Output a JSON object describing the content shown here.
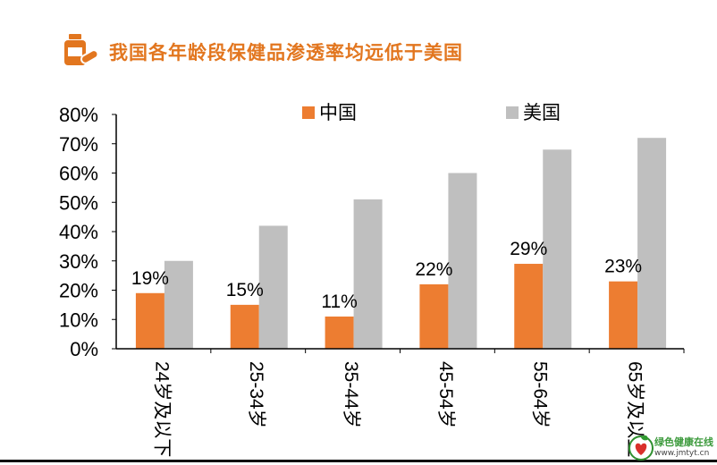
{
  "header": {
    "title": "我国各年龄段保健品渗透率均远低于美国",
    "icon": "medicine-bottle-icon",
    "accent": "#e2761f"
  },
  "chart_data": {
    "type": "bar",
    "categories": [
      "24岁及以下",
      "25-34岁",
      "35-44岁",
      "45-54岁",
      "55-64岁",
      "65岁及以上"
    ],
    "series": [
      {
        "name": "中国",
        "values": [
          19,
          15,
          11,
          22,
          29,
          23
        ],
        "color": "#ed7d31"
      },
      {
        "name": "美国",
        "values": [
          30,
          42,
          51,
          60,
          68,
          72
        ],
        "color": "#bfbfbf"
      }
    ],
    "data_labels": [
      "19%",
      "15%",
      "11%",
      "22%",
      "29%",
      "23%"
    ],
    "yticks": [
      "0%",
      "10%",
      "20%",
      "30%",
      "40%",
      "50%",
      "60%",
      "70%",
      "80%"
    ],
    "ylim": [
      0,
      80
    ],
    "legend_position": "top",
    "x_label_orientation": "rotated-90",
    "grid": false
  },
  "watermark": {
    "text": "绿色健康在线",
    "url": "www.jmtyt.cn",
    "icon": "heart-leaf-icon"
  }
}
